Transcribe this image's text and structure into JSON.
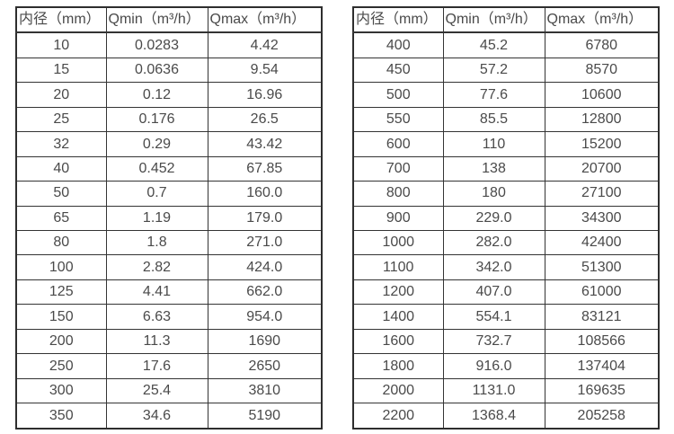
{
  "page": {
    "background": "#ffffff",
    "border_color": "#2e2e2e",
    "text_color": "#4a4a4a"
  },
  "tables": [
    {
      "name": "flow-table-small-diameters",
      "headers": [
        "内径（mm）",
        "Qmin（m³/h）",
        "Qmax（m³/h）"
      ],
      "rows": [
        [
          "10",
          "0.0283",
          "4.42"
        ],
        [
          "15",
          "0.0636",
          "9.54"
        ],
        [
          "20",
          "0.12",
          "16.96"
        ],
        [
          "25",
          "0.176",
          "26.5"
        ],
        [
          "32",
          "0.29",
          "43.42"
        ],
        [
          "40",
          "0.452",
          "67.85"
        ],
        [
          "50",
          "0.7",
          "160.0"
        ],
        [
          "65",
          "1.19",
          "179.0"
        ],
        [
          "80",
          "1.8",
          "271.0"
        ],
        [
          "100",
          "2.82",
          "424.0"
        ],
        [
          "125",
          "4.41",
          "662.0"
        ],
        [
          "150",
          "6.63",
          "954.0"
        ],
        [
          "200",
          "11.3",
          "1690"
        ],
        [
          "250",
          "17.6",
          "2650"
        ],
        [
          "300",
          "25.4",
          "3810"
        ],
        [
          "350",
          "34.6",
          "5190"
        ]
      ]
    },
    {
      "name": "flow-table-large-diameters",
      "headers": [
        "内径（mm）",
        "Qmin（m³/h）",
        "Qmax（m³/h）"
      ],
      "rows": [
        [
          "400",
          "45.2",
          "6780"
        ],
        [
          "450",
          "57.2",
          "8570"
        ],
        [
          "500",
          "77.6",
          "10600"
        ],
        [
          "550",
          "85.5",
          "12800"
        ],
        [
          "600",
          "110",
          "15200"
        ],
        [
          "700",
          "138",
          "20700"
        ],
        [
          "800",
          "180",
          "27100"
        ],
        [
          "900",
          "229.0",
          "34300"
        ],
        [
          "1000",
          "282.0",
          "42400"
        ],
        [
          "1100",
          "342.0",
          "51300"
        ],
        [
          "1200",
          "407.0",
          "61000"
        ],
        [
          "1400",
          "554.1",
          "83121"
        ],
        [
          "1600",
          "732.7",
          "108566"
        ],
        [
          "1800",
          "916.0",
          "137404"
        ],
        [
          "2000",
          "1131.0",
          "169635"
        ],
        [
          "2200",
          "1368.4",
          "205258"
        ]
      ]
    }
  ]
}
